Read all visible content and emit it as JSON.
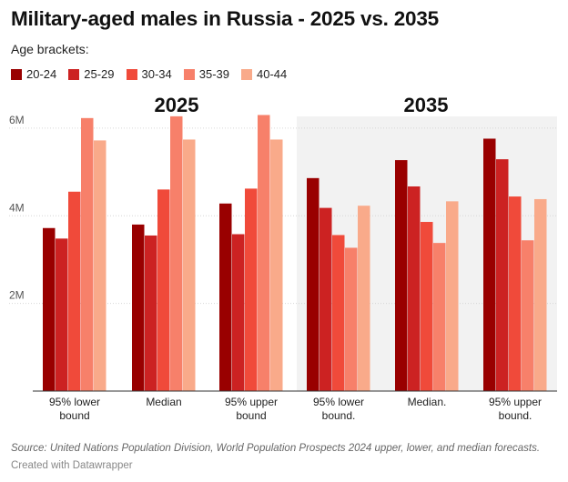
{
  "chart_data": {
    "type": "bar",
    "title": "Military-aged males in Russia - 2025 vs. 2035",
    "legend_title": "Age brackets:",
    "legend_position": "top-left",
    "colors": [
      "#990000",
      "#cc2222",
      "#f04a3a",
      "#f7806a",
      "#f9aa8a"
    ],
    "series": [
      {
        "name": "20-24",
        "values": [
          3.72,
          3.8,
          4.28,
          4.86,
          5.27,
          5.76
        ]
      },
      {
        "name": "25-29",
        "values": [
          3.48,
          3.55,
          3.58,
          4.18,
          4.67,
          5.29
        ]
      },
      {
        "name": "30-34",
        "values": [
          4.55,
          4.6,
          4.62,
          3.56,
          3.86,
          4.44
        ]
      },
      {
        "name": "35-39",
        "values": [
          6.23,
          6.27,
          6.3,
          3.27,
          3.38,
          3.44
        ]
      },
      {
        "name": "40-44",
        "values": [
          5.72,
          5.74,
          5.74,
          4.23,
          4.33,
          4.38
        ]
      }
    ],
    "categories": [
      [
        "95% lower",
        "bound"
      ],
      [
        "Median"
      ],
      [
        "95% upper",
        "bound"
      ],
      [
        "95% lower",
        "bound."
      ],
      [
        "Median."
      ],
      [
        "95% upper",
        "bound."
      ]
    ],
    "panels": [
      {
        "label": "2025",
        "category_indices": [
          0,
          1,
          2
        ]
      },
      {
        "label": "2035",
        "category_indices": [
          3,
          4,
          5
        ]
      }
    ],
    "ylim": [
      0,
      6.6
    ],
    "yticks": [
      2,
      4,
      6
    ],
    "ytick_labels": [
      "2M",
      "4M",
      "6M"
    ],
    "grid": true
  },
  "footer": {
    "source": "Source: United Nations Population Division, World Population Prospects 2024 upper, lower, and median forecasts.",
    "credit": "Created with Datawrapper"
  }
}
